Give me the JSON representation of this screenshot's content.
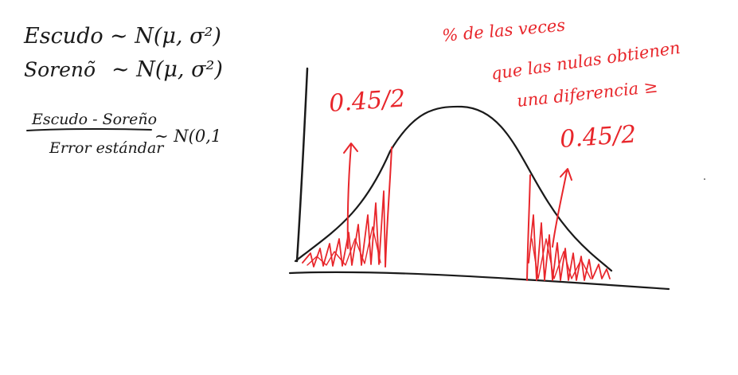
{
  "formulas": {
    "line1": {
      "name": "Escudo",
      "dist": "∼ N(μ, σ²)"
    },
    "line2": {
      "name": "Sorenõ",
      "dist": "∼ N(μ, σ²)"
    },
    "fraction": {
      "numerator": "Escudo - Soreño",
      "denominator": "Error estándar",
      "dist": "∼ N(0,1"
    }
  },
  "annotations": {
    "left_tail": "0.45/2",
    "right_tail": "0.45/2",
    "note_line1": "% de las veces",
    "note_line2": "que las nulas obtienen",
    "note_line3": "una diferencia ≥"
  },
  "colors": {
    "ink": "#1a1a1a",
    "accent": "#e8262b"
  }
}
